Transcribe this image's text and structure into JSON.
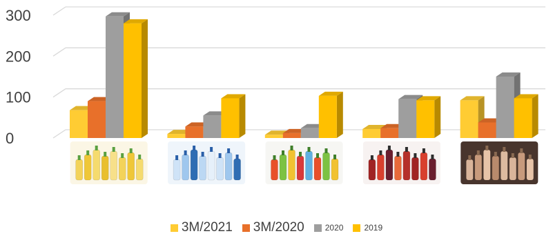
{
  "chart_data": {
    "type": "bar",
    "categories": [
      "Vegetable oil",
      "Bottled water",
      "Soft drinks",
      "Fruit juices",
      "Cosmetics"
    ],
    "series": [
      {
        "name": "3M/2021",
        "values": [
          68,
          10,
          8,
          22,
          92
        ],
        "color": "#FFCC33"
      },
      {
        "name": "3M/2020",
        "values": [
          90,
          28,
          12,
          24,
          38
        ],
        "color": "#E8702A"
      },
      {
        "name": "2020",
        "values": [
          297,
          55,
          24,
          95,
          150
        ],
        "color": "#9E9E9E"
      },
      {
        "name": "2019",
        "values": [
          280,
          97,
          103,
          92,
          97
        ],
        "color": "#FFC000"
      }
    ],
    "ylim": [
      0,
      300
    ],
    "yticks": [
      "0",
      "100",
      "200",
      "300"
    ],
    "grid": true,
    "legend_position": "bottom",
    "style": "3d-clustered-column"
  }
}
